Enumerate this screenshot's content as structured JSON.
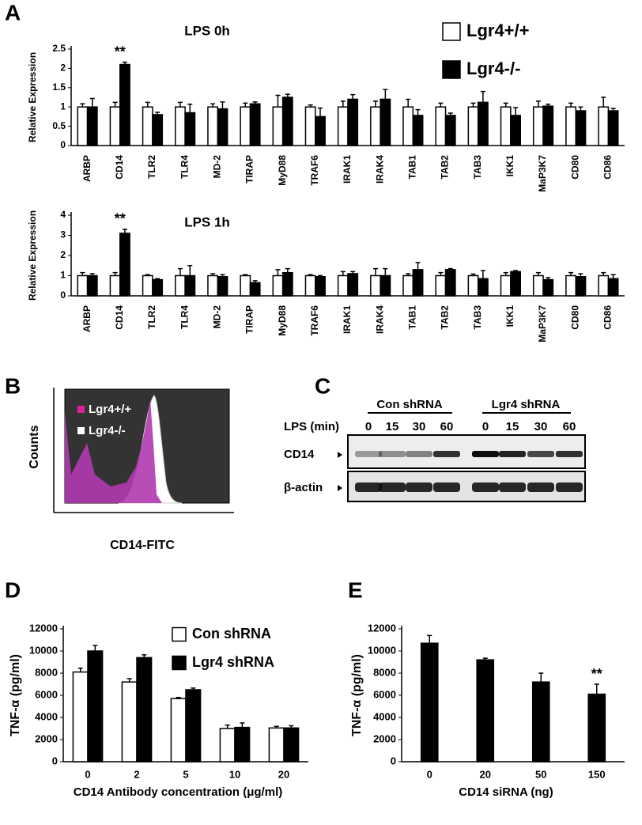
{
  "panels": [
    "A",
    "B",
    "C",
    "D",
    "E"
  ],
  "flow": {
    "y_label": "Counts",
    "x_label": "CD14-FITC",
    "legend": [
      "Lgr4+/+",
      "Lgr4-/-"
    ]
  },
  "blot": {
    "groups": [
      "Con shRNA",
      "Lgr4 shRNA"
    ],
    "row_label": "LPS (min)",
    "times": [
      "0",
      "15",
      "30",
      "60",
      "0",
      "15",
      "30",
      "60"
    ],
    "bands": [
      "CD14",
      "β-actin"
    ]
  },
  "chart_data": [
    {
      "type": "bar",
      "title": "LPS 0h",
      "y_label": "Relative Expression",
      "categories": [
        "ARBP",
        "CD14",
        "TLR2",
        "TLR4",
        "MD-2",
        "TIRAP",
        "MyD88",
        "TRAF6",
        "IRAK1",
        "IRAK4",
        "TAB1",
        "TAB2",
        "TAB3",
        "IKK1",
        "MaP3K7",
        "CD80",
        "CD86"
      ],
      "series": [
        {
          "name": "Lgr4+/+",
          "color": "#ffffff",
          "values": [
            1,
            1,
            1,
            1,
            1,
            1,
            1,
            1,
            1,
            1,
            1,
            1,
            1,
            1,
            1,
            1,
            1
          ],
          "errors": [
            0.08,
            0.12,
            0.12,
            0.12,
            0.08,
            0.1,
            0.3,
            0.05,
            0.15,
            0.15,
            0.2,
            0.1,
            0.1,
            0.1,
            0.15,
            0.1,
            0.25
          ]
        },
        {
          "name": "Lgr4-/-",
          "color": "#000000",
          "values": [
            1,
            2.1,
            0.8,
            0.85,
            0.95,
            1.08,
            1.25,
            0.75,
            1.2,
            1.2,
            0.78,
            0.78,
            1.12,
            0.78,
            1.02,
            0.9,
            0.9
          ],
          "errors": [
            0.22,
            0.06,
            0.06,
            0.22,
            0.18,
            0.05,
            0.08,
            0.22,
            0.12,
            0.25,
            0.15,
            0.06,
            0.28,
            0.2,
            0.05,
            0.1,
            0.06
          ]
        }
      ],
      "ylim": [
        0,
        2.5
      ],
      "yticks": [
        0,
        0.5,
        1,
        1.5,
        2,
        2.5
      ],
      "legend": "upper right",
      "annotations": [
        {
          "text": "**",
          "category": "CD14"
        }
      ]
    },
    {
      "type": "bar",
      "title": "LPS 1h",
      "y_label": "Relative Expression",
      "categories": [
        "ARBP",
        "CD14",
        "TLR2",
        "TLR4",
        "MD-2",
        "TIRAP",
        "MyD88",
        "TRAF6",
        "IRAK1",
        "IRAK4",
        "TAB1",
        "TAB2",
        "TAB3",
        "IKK1",
        "MaP3K7",
        "CD80",
        "CD86"
      ],
      "series": [
        {
          "color": "#ffffff",
          "values": [
            1,
            1,
            1,
            1,
            1,
            1,
            1,
            1,
            1,
            1,
            1,
            1,
            1,
            1,
            1,
            1,
            1
          ],
          "errors": [
            0.15,
            0.15,
            0.05,
            0.35,
            0.1,
            0.05,
            0.3,
            0.05,
            0.2,
            0.35,
            0.1,
            0.15,
            0.08,
            0.15,
            0.15,
            0.15,
            0.15
          ]
        },
        {
          "color": "#000000",
          "values": [
            1,
            3.1,
            0.8,
            1,
            0.95,
            0.65,
            1.15,
            0.95,
            1.1,
            1,
            1.3,
            1.3,
            0.85,
            1.2,
            0.8,
            0.95,
            0.85
          ],
          "errors": [
            0.1,
            0.2,
            0.05,
            0.5,
            0.1,
            0.1,
            0.2,
            0.05,
            0.1,
            0.35,
            0.35,
            0.05,
            0.4,
            0.05,
            0.1,
            0.15,
            0.2
          ]
        }
      ],
      "ylim": [
        0,
        4
      ],
      "yticks": [
        0,
        1,
        2,
        3,
        4
      ],
      "annotations": [
        {
          "text": "**",
          "category": "CD14"
        }
      ]
    },
    {
      "type": "bar",
      "y_label": "TNF-α (pg/ml)",
      "x_label": "CD14 Antibody concentration (μg/ml)",
      "categories": [
        "0",
        "2",
        "5",
        "10",
        "20"
      ],
      "series": [
        {
          "name": "Con shRNA",
          "color": "#ffffff",
          "values": [
            8100,
            7200,
            5700,
            3000,
            3050
          ],
          "errors": [
            350,
            300,
            100,
            300,
            150
          ]
        },
        {
          "name": "Lgr4 shRNA",
          "color": "#000000",
          "values": [
            10000,
            9400,
            6500,
            3100,
            3050
          ],
          "errors": [
            500,
            250,
            150,
            400,
            200
          ]
        }
      ],
      "ylim": [
        0,
        12000
      ],
      "yticks": [
        0,
        2000,
        4000,
        6000,
        8000,
        10000,
        12000
      ],
      "legend": "upper right"
    },
    {
      "type": "bar",
      "y_label": "TNF-α (pg/ml)",
      "x_label": "CD14 siRNA (ng)",
      "categories": [
        "0",
        "20",
        "50",
        "150"
      ],
      "series": [
        {
          "color": "#000000",
          "values": [
            10700,
            9200,
            7200,
            6100
          ],
          "errors": [
            700,
            150,
            800,
            900
          ]
        }
      ],
      "ylim": [
        0,
        12000
      ],
      "yticks": [
        0,
        2000,
        4000,
        6000,
        8000,
        10000,
        12000
      ],
      "annotations": [
        {
          "text": "**",
          "category": "150"
        }
      ]
    }
  ]
}
